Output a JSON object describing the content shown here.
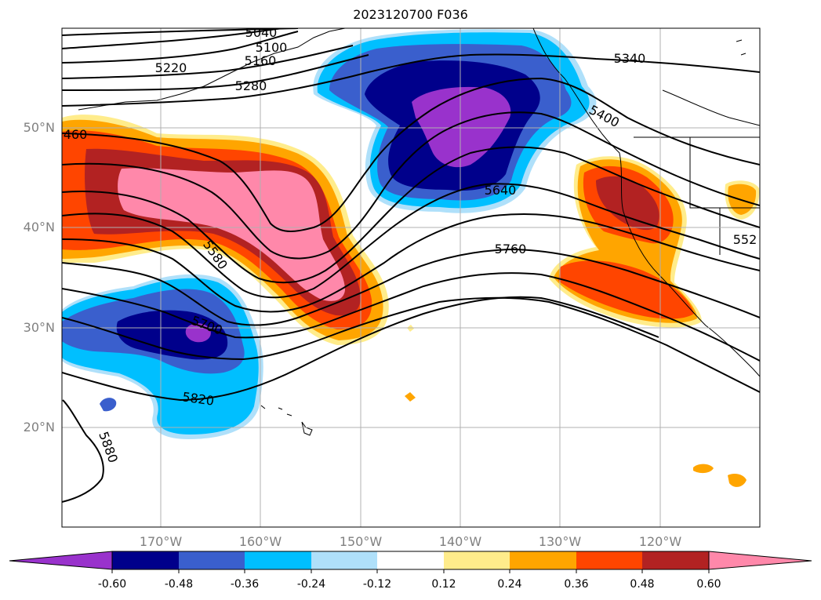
{
  "title": "2023120700 F036",
  "colors": {
    "background": "#ffffff",
    "coastline": "#000000",
    "contour": "#000000",
    "grid": "#b0b0b0"
  },
  "lat_labels": [
    "50°N",
    "40°N",
    "30°N",
    "20°N"
  ],
  "lon_labels": [
    "170°W",
    "160°W",
    "150°W",
    "140°W",
    "130°W",
    "120°W"
  ],
  "contour_labels": [
    "5040",
    "5100",
    "5160",
    "5220",
    "5280",
    "5340",
    "5400",
    "460",
    "5580",
    "5640",
    "5700",
    "5760",
    "5820",
    "5880",
    "552"
  ],
  "colorbar": {
    "ticks": [
      "-0.60",
      "-0.48",
      "-0.36",
      "-0.24",
      "-0.12",
      "0.12",
      "0.24",
      "0.36",
      "0.48",
      "0.60"
    ],
    "colors": [
      "#9932cc",
      "#00008b",
      "#3a5fcd",
      "#00bfff",
      "#afe0fa",
      "#ffffff",
      "#ffec8b",
      "#ffa500",
      "#ff4500",
      "#b22222",
      "#ff88aa"
    ],
    "extend": "both"
  }
}
